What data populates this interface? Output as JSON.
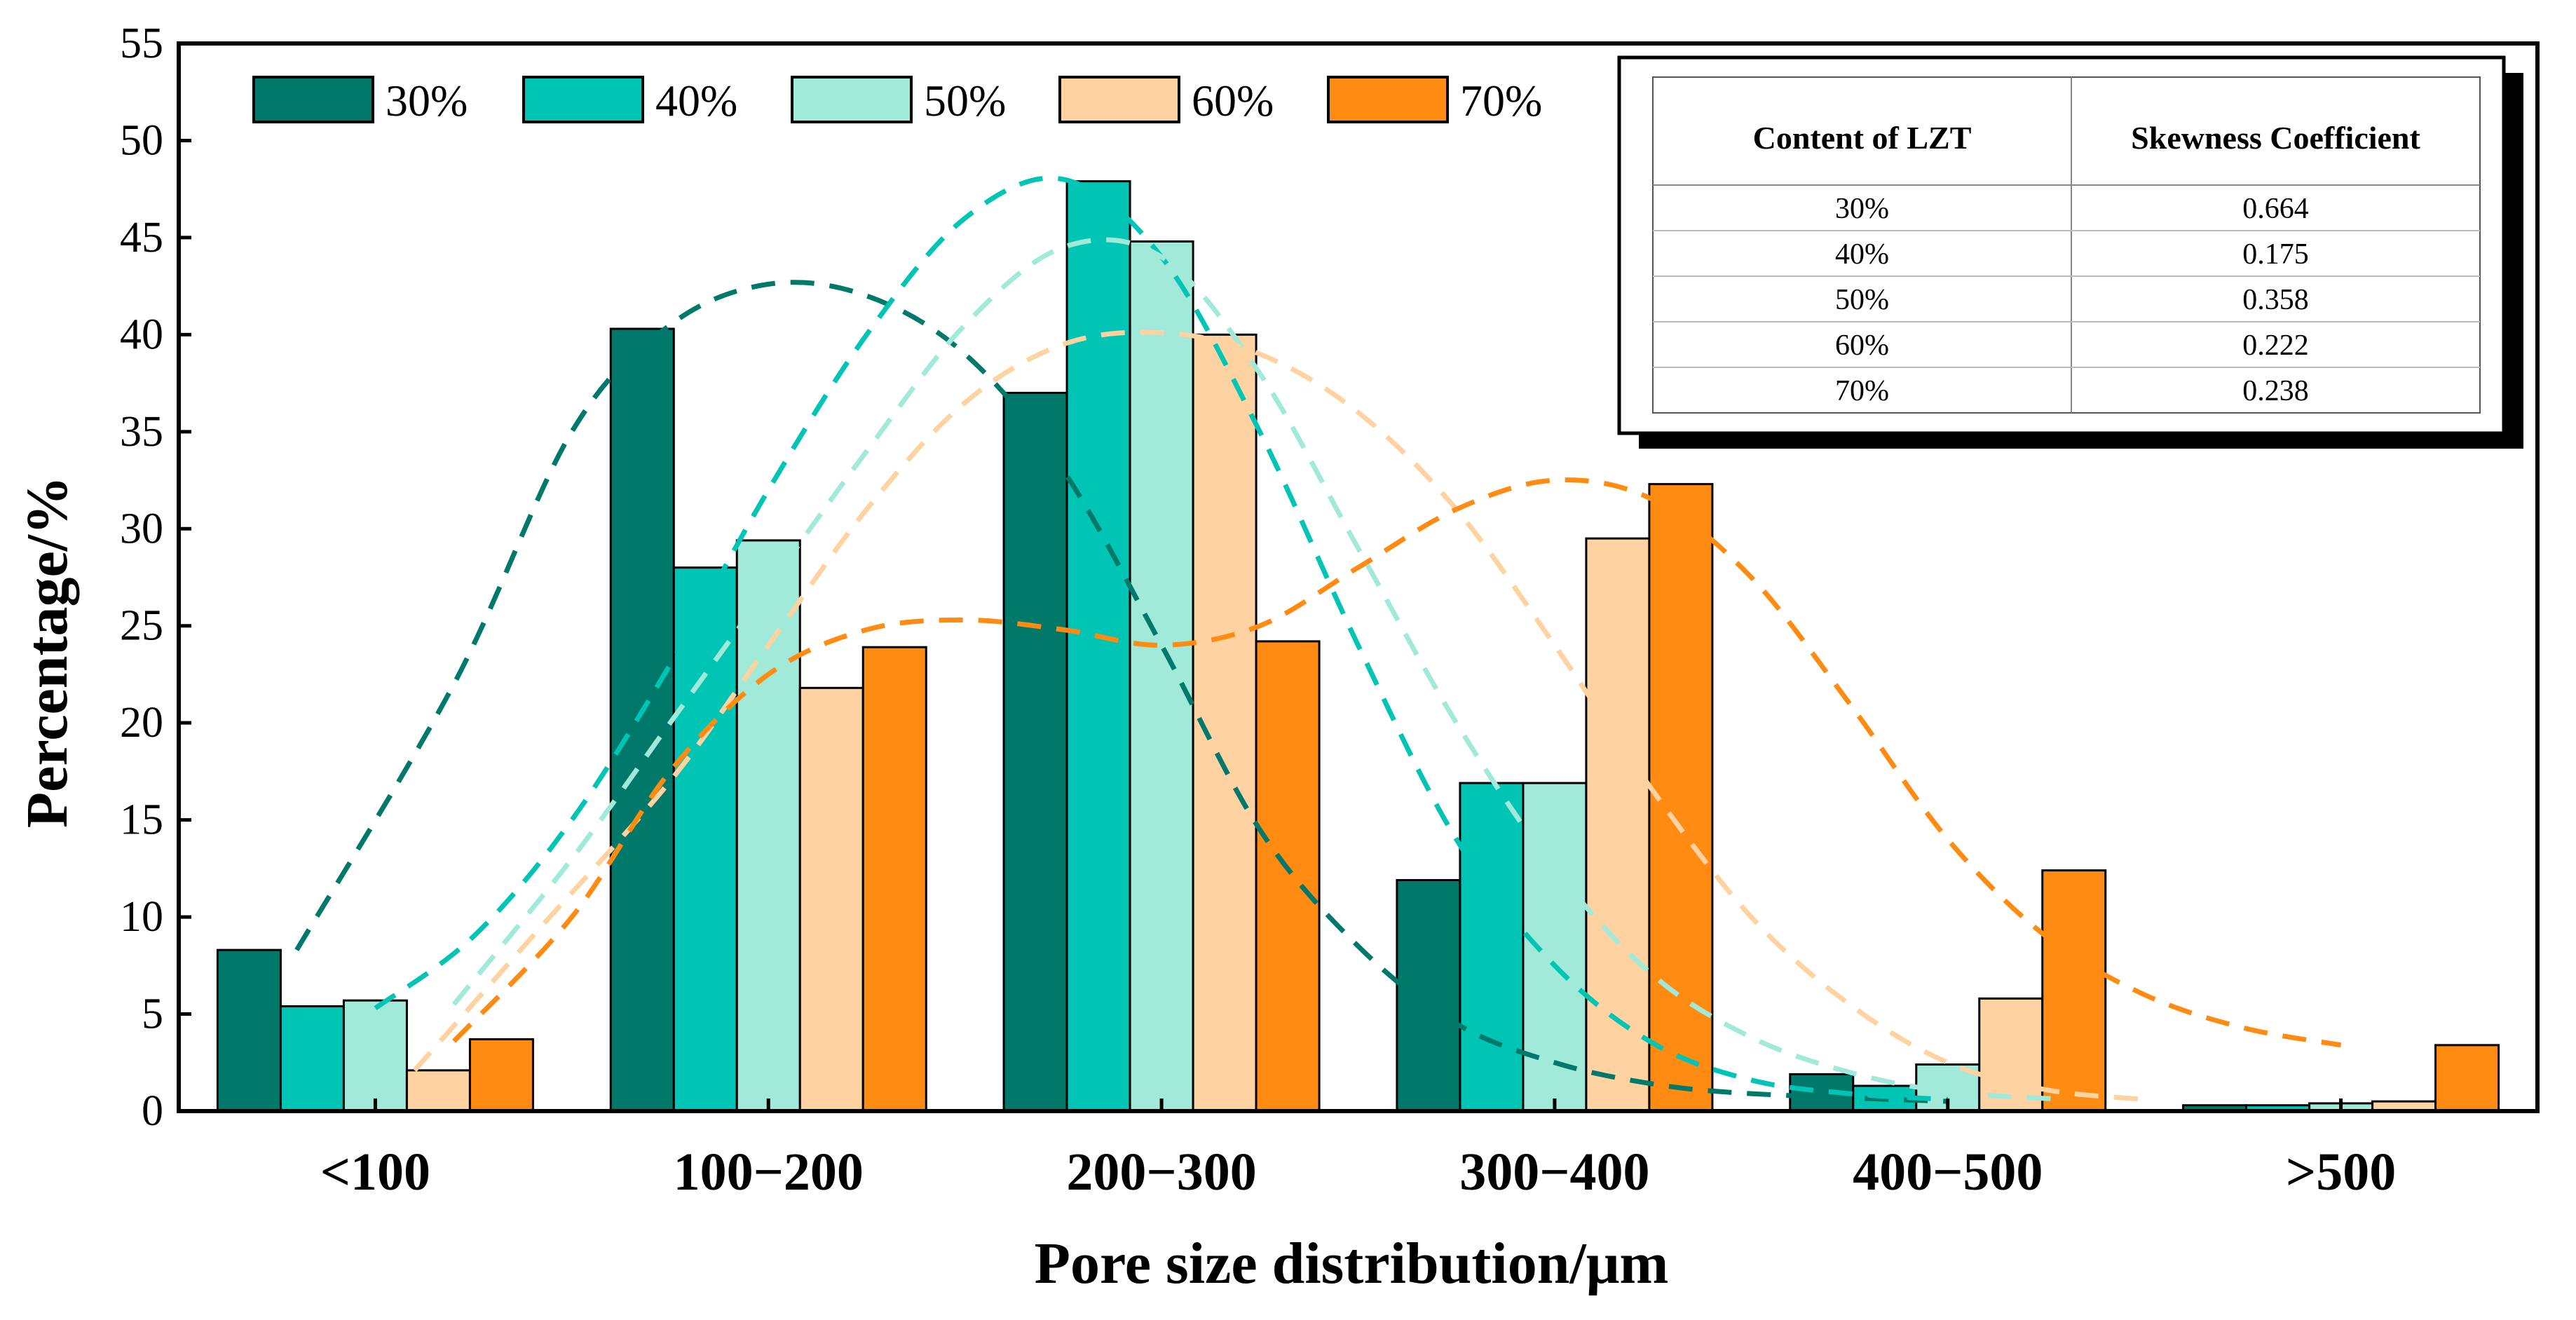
{
  "chart_data": {
    "type": "bar",
    "title": "",
    "xlabel": "Pore size distribution/μm",
    "ylabel": "Percentage/%",
    "ylim": [
      0,
      55
    ],
    "yticks": [
      0,
      5,
      10,
      15,
      20,
      25,
      30,
      35,
      40,
      45,
      50,
      55
    ],
    "grid": false,
    "legend_position": "top-left",
    "categories": [
      "<100",
      "100−200",
      "200−300",
      "300−400",
      "400−500",
      ">500"
    ],
    "series": [
      {
        "name": "30%",
        "color": "#00786a",
        "values": [
          8.3,
          40.3,
          37.0,
          11.9,
          1.9,
          0.3
        ]
      },
      {
        "name": "40%",
        "color": "#00c5b5",
        "values": [
          5.4,
          28.0,
          47.9,
          16.9,
          1.3,
          0.3
        ]
      },
      {
        "name": "50%",
        "color": "#a1e9d9",
        "values": [
          5.7,
          29.4,
          44.8,
          16.9,
          2.4,
          0.4
        ]
      },
      {
        "name": "60%",
        "color": "#ffd2a2",
        "values": [
          2.1,
          21.8,
          40.0,
          29.5,
          5.8,
          0.5
        ]
      },
      {
        "name": "70%",
        "color": "#ff8b12",
        "values": [
          3.7,
          23.9,
          24.2,
          32.3,
          12.4,
          3.4
        ]
      }
    ],
    "fit_curves": [
      {
        "name": "30%",
        "color": "#00786a",
        "points": [
          [
            0.3,
            8.3
          ],
          [
            0.7,
            22
          ],
          [
            1.0,
            35
          ],
          [
            1.25,
            40.5
          ],
          [
            1.5,
            42.6
          ],
          [
            1.75,
            42
          ],
          [
            2.0,
            39
          ],
          [
            2.25,
            33
          ],
          [
            2.5,
            24
          ],
          [
            2.75,
            14.5
          ],
          [
            3.0,
            8.5
          ],
          [
            3.25,
            4.5
          ],
          [
            3.5,
            2.5
          ],
          [
            3.75,
            1.4
          ],
          [
            4.0,
            0.9
          ],
          [
            4.5,
            0.5
          ]
        ]
      },
      {
        "name": "40%",
        "color": "#00c5b5",
        "points": [
          [
            0.5,
            5.3
          ],
          [
            0.75,
            9
          ],
          [
            1.0,
            15
          ],
          [
            1.25,
            23
          ],
          [
            1.5,
            32
          ],
          [
            1.75,
            40
          ],
          [
            2.0,
            46
          ],
          [
            2.25,
            48
          ],
          [
            2.5,
            44
          ],
          [
            2.75,
            35
          ],
          [
            3.0,
            24
          ],
          [
            3.25,
            14
          ],
          [
            3.5,
            7.5
          ],
          [
            3.75,
            3.5
          ],
          [
            4.0,
            1.6
          ],
          [
            4.25,
            0.9
          ],
          [
            4.5,
            0.6
          ]
        ]
      },
      {
        "name": "50%",
        "color": "#a1e9d9",
        "points": [
          [
            0.7,
            5.5
          ],
          [
            1.0,
            13
          ],
          [
            1.25,
            20
          ],
          [
            1.5,
            27
          ],
          [
            1.75,
            34
          ],
          [
            2.0,
            40.5
          ],
          [
            2.25,
            44.5
          ],
          [
            2.5,
            44
          ],
          [
            2.75,
            38
          ],
          [
            3.0,
            29
          ],
          [
            3.25,
            20
          ],
          [
            3.5,
            12.5
          ],
          [
            3.75,
            7
          ],
          [
            4.0,
            3.8
          ],
          [
            4.25,
            2
          ],
          [
            4.5,
            1
          ],
          [
            4.8,
            0.6
          ]
        ]
      },
      {
        "name": "60%",
        "color": "#ffd2a2",
        "points": [
          [
            0.6,
            2.1
          ],
          [
            0.9,
            9
          ],
          [
            1.25,
            17
          ],
          [
            1.5,
            24
          ],
          [
            1.75,
            31
          ],
          [
            2.0,
            36.5
          ],
          [
            2.25,
            39.5
          ],
          [
            2.5,
            40.1
          ],
          [
            2.75,
            39
          ],
          [
            3.0,
            36
          ],
          [
            3.25,
            31
          ],
          [
            3.5,
            24
          ],
          [
            3.75,
            16.5
          ],
          [
            4.0,
            10
          ],
          [
            4.25,
            5.5
          ],
          [
            4.5,
            2.5
          ],
          [
            4.75,
            1.1
          ],
          [
            5.0,
            0.6
          ]
        ]
      },
      {
        "name": "70%",
        "color": "#ff8b12",
        "points": [
          [
            0.7,
            3.6
          ],
          [
            1.0,
            10
          ],
          [
            1.25,
            17.5
          ],
          [
            1.5,
            22.5
          ],
          [
            1.75,
            24.8
          ],
          [
            2.0,
            25.3
          ],
          [
            2.25,
            24.8
          ],
          [
            2.5,
            24.0
          ],
          [
            2.75,
            25
          ],
          [
            3.0,
            28
          ],
          [
            3.25,
            31
          ],
          [
            3.5,
            32.5
          ],
          [
            3.75,
            31.5
          ],
          [
            4.0,
            27.5
          ],
          [
            4.25,
            21
          ],
          [
            4.5,
            14
          ],
          [
            4.75,
            9
          ],
          [
            5.0,
            6
          ],
          [
            5.25,
            4.3
          ],
          [
            5.5,
            3.4
          ]
        ]
      }
    ],
    "inset_table": {
      "headers": [
        "Content of LZT",
        "Skewness Coefficient"
      ],
      "rows": [
        [
          "30%",
          "0.664"
        ],
        [
          "40%",
          "0.175"
        ],
        [
          "50%",
          "0.358"
        ],
        [
          "60%",
          "0.222"
        ],
        [
          "70%",
          "0.238"
        ]
      ]
    }
  }
}
